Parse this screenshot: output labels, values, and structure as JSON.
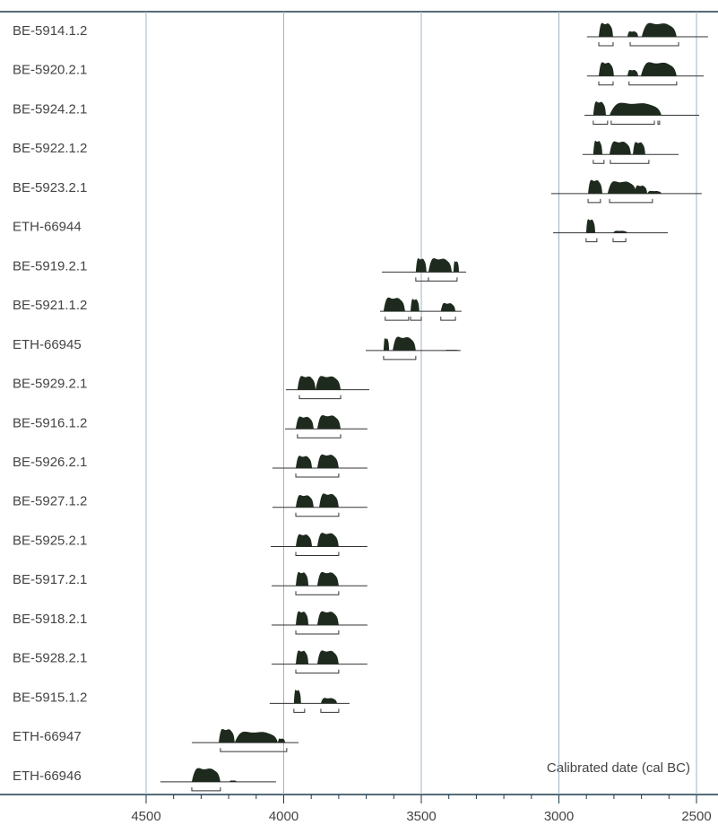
{
  "chart_data": {
    "type": "calibration",
    "xlabel": "Calibrated date (cal BC)",
    "xlim": [
      4500,
      2500
    ],
    "xticks": [
      4500,
      4000,
      3500,
      3000,
      2500
    ],
    "minor_xticks": [
      4400,
      4300,
      4200,
      4100,
      3900,
      3800,
      3700,
      3600,
      3400,
      3300,
      3200,
      3100,
      2900,
      2800,
      2700,
      2600
    ],
    "grid": true,
    "color": "#1e2a1e",
    "samples": [
      {
        "name": "BE-5914.1.2",
        "span": [
          2898,
          2458
        ],
        "blobs": [
          [
            2855,
            2803,
            1
          ],
          [
            2751,
            2712,
            0.4
          ],
          [
            2699,
            2572,
            1
          ]
        ],
        "ranges": [
          [
            2855,
            2803
          ],
          [
            2741,
            2565
          ]
        ]
      },
      {
        "name": "BE-5920.2.1",
        "span": [
          2898,
          2474
        ],
        "blobs": [
          [
            2855,
            2800,
            1
          ],
          [
            2751,
            2712,
            0.45
          ],
          [
            2702,
            2572,
            1
          ]
        ],
        "ranges": [
          [
            2855,
            2803
          ],
          [
            2745,
            2572
          ]
        ]
      },
      {
        "name": "BE-5924.2.1",
        "span": [
          2907,
          2490
        ],
        "blobs": [
          [
            2875,
            2829,
            1
          ],
          [
            2816,
            2627,
            0.9
          ]
        ],
        "ranges": [
          [
            2875,
            2823
          ],
          [
            2810,
            2653
          ],
          [
            2640,
            2634
          ]
        ]
      },
      {
        "name": "BE-5922.1.2",
        "span": [
          2914,
          2565
        ],
        "blobs": [
          [
            2875,
            2842,
            1
          ],
          [
            2816,
            2738,
            0.95
          ],
          [
            2731,
            2686,
            0.9
          ]
        ],
        "ranges": [
          [
            2875,
            2836
          ],
          [
            2813,
            2673
          ]
        ]
      },
      {
        "name": "BE-5923.2.1",
        "span": [
          3028,
          2481
        ],
        "blobs": [
          [
            2894,
            2842,
            1
          ],
          [
            2823,
            2718,
            0.9
          ],
          [
            2725,
            2679,
            0.6
          ],
          [
            2679,
            2627,
            0.2
          ]
        ],
        "ranges": [
          [
            2894,
            2849
          ],
          [
            2816,
            2660
          ]
        ]
      },
      {
        "name": "ETH-66944",
        "span": [
          3021,
          2604
        ],
        "blobs": [
          [
            2901,
            2868,
            1
          ],
          [
            2803,
            2751,
            0.15
          ]
        ],
        "ranges": [
          [
            2901,
            2862
          ],
          [
            2803,
            2757
          ]
        ]
      },
      {
        "name": "BE-5919.2.1",
        "span": [
          3643,
          3337
        ],
        "blobs": [
          [
            3520,
            3481,
            1
          ],
          [
            3474,
            3389,
            1
          ],
          [
            3383,
            3363,
            0.8
          ]
        ],
        "ranges": [
          [
            3520,
            3474
          ],
          [
            3474,
            3370
          ]
        ]
      },
      {
        "name": "BE-5921.1.2",
        "span": [
          3650,
          3354
        ],
        "blobs": [
          [
            3637,
            3559,
            1
          ],
          [
            3539,
            3507,
            0.9
          ],
          [
            3429,
            3376,
            0.6
          ]
        ],
        "ranges": [
          [
            3631,
            3546
          ],
          [
            3539,
            3500
          ],
          [
            3429,
            3376
          ]
        ]
      },
      {
        "name": "ETH-66945",
        "span": [
          3702,
          3357
        ],
        "blobs": [
          [
            3637,
            3617,
            0.9
          ],
          [
            3604,
            3520,
            1
          ],
          [
            3416,
            3363,
            0.05
          ]
        ],
        "ranges": [
          [
            3637,
            3520
          ]
        ]
      },
      {
        "name": "BE-5929.2.1",
        "span": [
          3992,
          3689
        ],
        "blobs": [
          [
            3950,
            3884,
            1
          ],
          [
            3884,
            3793,
            1
          ]
        ],
        "ranges": [
          [
            3943,
            3793
          ]
        ]
      },
      {
        "name": "BE-5916.1.2",
        "span": [
          3995,
          3696
        ],
        "blobs": [
          [
            3956,
            3891,
            0.9
          ],
          [
            3878,
            3793,
            1
          ]
        ],
        "ranges": [
          [
            3950,
            3793
          ]
        ]
      },
      {
        "name": "BE-5926.2.1",
        "span": [
          4041,
          3696
        ],
        "blobs": [
          [
            3956,
            3897,
            0.9
          ],
          [
            3878,
            3800,
            1
          ]
        ],
        "ranges": [
          [
            3956,
            3800
          ]
        ]
      },
      {
        "name": "BE-5927.1.2",
        "span": [
          4041,
          3696
        ],
        "blobs": [
          [
            3956,
            3891,
            0.9
          ],
          [
            3871,
            3800,
            1
          ]
        ],
        "ranges": [
          [
            3956,
            3800
          ]
        ]
      },
      {
        "name": "BE-5925.2.1",
        "span": [
          4047,
          3696
        ],
        "blobs": [
          [
            3956,
            3897,
            0.9
          ],
          [
            3878,
            3800,
            1
          ]
        ],
        "ranges": [
          [
            3956,
            3800
          ]
        ]
      },
      {
        "name": "BE-5917.2.1",
        "span": [
          4044,
          3696
        ],
        "blobs": [
          [
            3956,
            3910,
            1
          ],
          [
            3878,
            3800,
            1
          ]
        ],
        "ranges": [
          [
            3956,
            3800
          ]
        ]
      },
      {
        "name": "BE-5918.2.1",
        "span": [
          4044,
          3696
        ],
        "blobs": [
          [
            3956,
            3910,
            1
          ],
          [
            3878,
            3800,
            1
          ]
        ],
        "ranges": [
          [
            3956,
            3800
          ]
        ]
      },
      {
        "name": "BE-5928.2.1",
        "span": [
          4044,
          3696
        ],
        "blobs": [
          [
            3956,
            3910,
            1
          ],
          [
            3878,
            3800,
            1
          ]
        ],
        "ranges": [
          [
            3956,
            3800
          ]
        ]
      },
      {
        "name": "BE-5915.1.2",
        "span": [
          4051,
          3761
        ],
        "blobs": [
          [
            3963,
            3937,
            1
          ],
          [
            3865,
            3806,
            0.4
          ]
        ],
        "ranges": [
          [
            3963,
            3924
          ],
          [
            3865,
            3800
          ]
        ]
      },
      {
        "name": "ETH-66947",
        "span": [
          4334,
          3946
        ],
        "blobs": [
          [
            4236,
            4178,
            1
          ],
          [
            4178,
            4021,
            0.8
          ],
          [
            4021,
            3995,
            0.3
          ]
        ],
        "ranges": [
          [
            4230,
            3989
          ]
        ]
      },
      {
        "name": "ETH-66946",
        "span": [
          4448,
          4028
        ],
        "blobs": [
          [
            4334,
            4230,
            1
          ],
          [
            4197,
            4171,
            0.1
          ]
        ],
        "ranges": [
          [
            4334,
            4230
          ]
        ]
      }
    ]
  }
}
